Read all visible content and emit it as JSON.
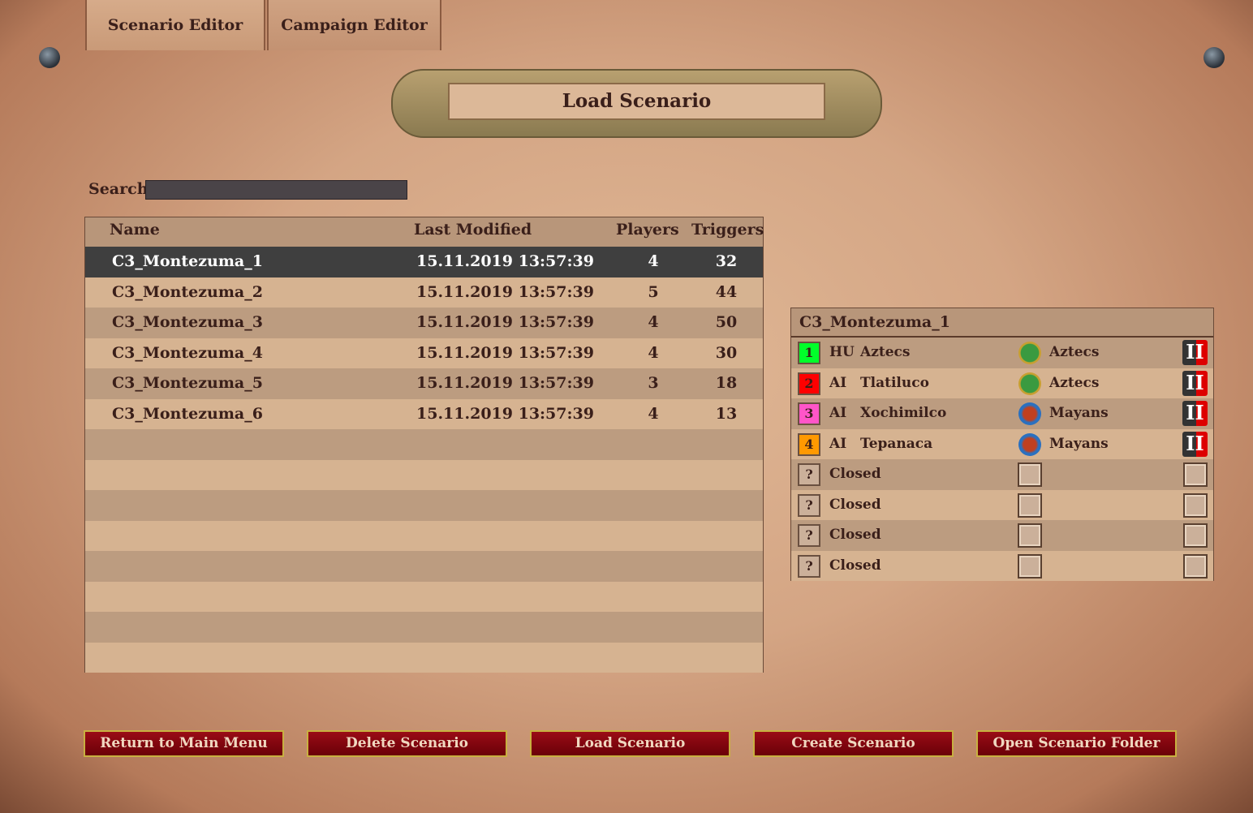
{
  "tabs": [
    "Scenario Editor",
    "Campaign Editor"
  ],
  "title": "Load Scenario",
  "search": {
    "label": "Search",
    "value": ""
  },
  "table": {
    "headers": {
      "name": "Name",
      "modified": "Last Modified",
      "players": "Players",
      "triggers": "Triggers"
    },
    "rows": [
      {
        "name": "C3_Montezuma_1",
        "modified": "15.11.2019 13:57:39",
        "players": "4",
        "triggers": "32"
      },
      {
        "name": "C3_Montezuma_2",
        "modified": "15.11.2019 13:57:39",
        "players": "5",
        "triggers": "44"
      },
      {
        "name": "C3_Montezuma_3",
        "modified": "15.11.2019 13:57:39",
        "players": "4",
        "triggers": "50"
      },
      {
        "name": "C3_Montezuma_4",
        "modified": "15.11.2019 13:57:39",
        "players": "4",
        "triggers": "30"
      },
      {
        "name": "C3_Montezuma_5",
        "modified": "15.11.2019 13:57:39",
        "players": "3",
        "triggers": "18"
      },
      {
        "name": "C3_Montezuma_6",
        "modified": "15.11.2019 13:57:39",
        "players": "4",
        "triggers": "13"
      }
    ],
    "selected": 0
  },
  "details": {
    "title": "C3_Montezuma_1",
    "players": [
      {
        "num": "1",
        "color": "#00ff2a",
        "type": "HU",
        "name": "Aztecs",
        "civ": "Aztecs",
        "civ_icon": "aztecs-emblem-icon",
        "team": "II"
      },
      {
        "num": "2",
        "color": "#ff0000",
        "type": "AI",
        "name": "Tlatiluco",
        "civ": "Aztecs",
        "civ_icon": "aztecs-emblem-icon",
        "team": "II"
      },
      {
        "num": "3",
        "color": "#ff55c8",
        "type": "AI",
        "name": "Xochimilco",
        "civ": "Mayans",
        "civ_icon": "mayans-emblem-icon",
        "team": "II"
      },
      {
        "num": "4",
        "color": "#ff9900",
        "type": "AI",
        "name": "Tepanaca",
        "civ": "Mayans",
        "civ_icon": "mayans-emblem-icon",
        "team": "II"
      }
    ],
    "closed": [
      {
        "num": "?",
        "label": "Closed"
      },
      {
        "num": "?",
        "label": "Closed"
      },
      {
        "num": "?",
        "label": "Closed"
      },
      {
        "num": "?",
        "label": "Closed"
      }
    ]
  },
  "buttons": [
    "Return to Main Menu",
    "Delete Scenario",
    "Load Scenario",
    "Create Scenario",
    "Open Scenario Folder"
  ]
}
